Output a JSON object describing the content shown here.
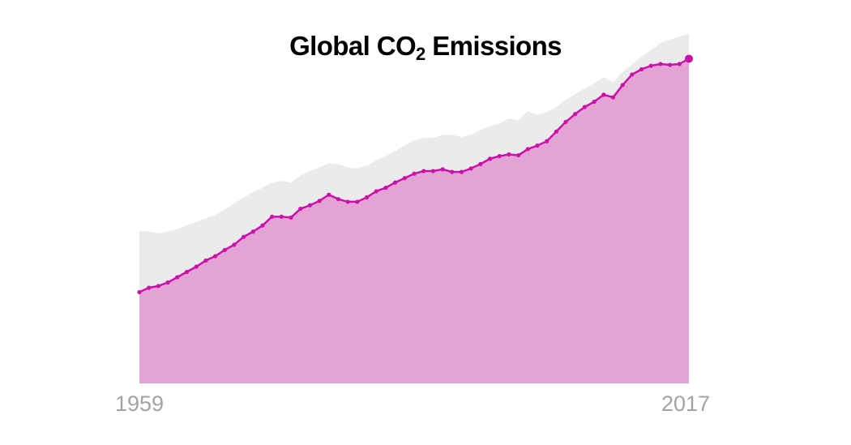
{
  "title": {
    "main": "Global CO",
    "subscript": "2",
    "suffix": " Emissions"
  },
  "chart_data": {
    "type": "area",
    "title": "Global CO₂ Emissions",
    "xlabel": "",
    "ylabel": "",
    "x_range": [
      1959,
      2017
    ],
    "y_range": [
      0,
      40
    ],
    "tick_labels": [
      "1959",
      "2017"
    ],
    "grid": false,
    "legend": "none",
    "colors": {
      "band": "#ebebeb",
      "area": "#e3a3d5",
      "line": "#cc11aa"
    },
    "series": [
      {
        "role": "upper-band",
        "x": [
          1959,
          1960,
          1961,
          1962,
          1963,
          1964,
          1965,
          1966,
          1967,
          1968,
          1969,
          1970,
          1971,
          1972,
          1973,
          1974,
          1975,
          1976,
          1977,
          1978,
          1979,
          1980,
          1981,
          1982,
          1983,
          1984,
          1985,
          1986,
          1987,
          1988,
          1989,
          1990,
          1991,
          1992,
          1993,
          1994,
          1995,
          1996,
          1997,
          1998,
          1999,
          2000,
          2001,
          2002,
          2003,
          2004,
          2005,
          2006,
          2007,
          2008,
          2009,
          2010,
          2011,
          2012,
          2013,
          2014,
          2015,
          2016,
          2017
        ],
        "values": [
          17.4,
          17.3,
          17.1,
          17.3,
          17.6,
          18.0,
          18.4,
          18.8,
          19.2,
          19.8,
          20.5,
          21.2,
          21.8,
          22.3,
          22.9,
          23.1,
          22.9,
          23.7,
          24.2,
          24.6,
          25.1,
          25.0,
          24.6,
          24.5,
          24.8,
          25.4,
          25.9,
          26.5,
          27.1,
          27.7,
          28.0,
          28.0,
          28.3,
          28.3,
          28.1,
          28.3,
          28.9,
          29.3,
          29.6,
          30.2,
          30.0,
          31.0,
          30.6,
          30.9,
          31.5,
          32.3,
          33.0,
          33.6,
          34.2,
          34.9,
          34.3,
          35.5,
          36.4,
          37.2,
          38.0,
          38.8,
          39.2,
          39.5,
          39.9
        ]
      },
      {
        "role": "main",
        "x": [
          1959,
          1960,
          1961,
          1962,
          1963,
          1964,
          1965,
          1966,
          1967,
          1968,
          1969,
          1970,
          1971,
          1972,
          1973,
          1974,
          1975,
          1976,
          1977,
          1978,
          1979,
          1980,
          1981,
          1982,
          1983,
          1984,
          1985,
          1986,
          1987,
          1988,
          1989,
          1990,
          1991,
          1992,
          1993,
          1994,
          1995,
          1996,
          1997,
          1998,
          1999,
          2000,
          2001,
          2002,
          2003,
          2004,
          2005,
          2006,
          2007,
          2008,
          2009,
          2010,
          2011,
          2012,
          2013,
          2014,
          2015,
          2016,
          2017
        ],
        "values": [
          10.4,
          10.9,
          11.1,
          11.5,
          12.1,
          12.7,
          13.3,
          14.0,
          14.5,
          15.2,
          15.8,
          16.7,
          17.3,
          18.0,
          19.0,
          19.0,
          18.9,
          19.9,
          20.3,
          20.8,
          21.5,
          21.0,
          20.7,
          20.7,
          21.2,
          21.9,
          22.3,
          22.9,
          23.4,
          23.9,
          24.2,
          24.2,
          24.4,
          24.1,
          24.1,
          24.5,
          25.0,
          25.6,
          25.9,
          26.1,
          26.0,
          26.7,
          27.1,
          27.6,
          28.7,
          29.8,
          30.7,
          31.5,
          32.1,
          32.9,
          32.6,
          34.0,
          35.2,
          35.8,
          36.2,
          36.4,
          36.3,
          36.4,
          37.0
        ]
      }
    ]
  }
}
